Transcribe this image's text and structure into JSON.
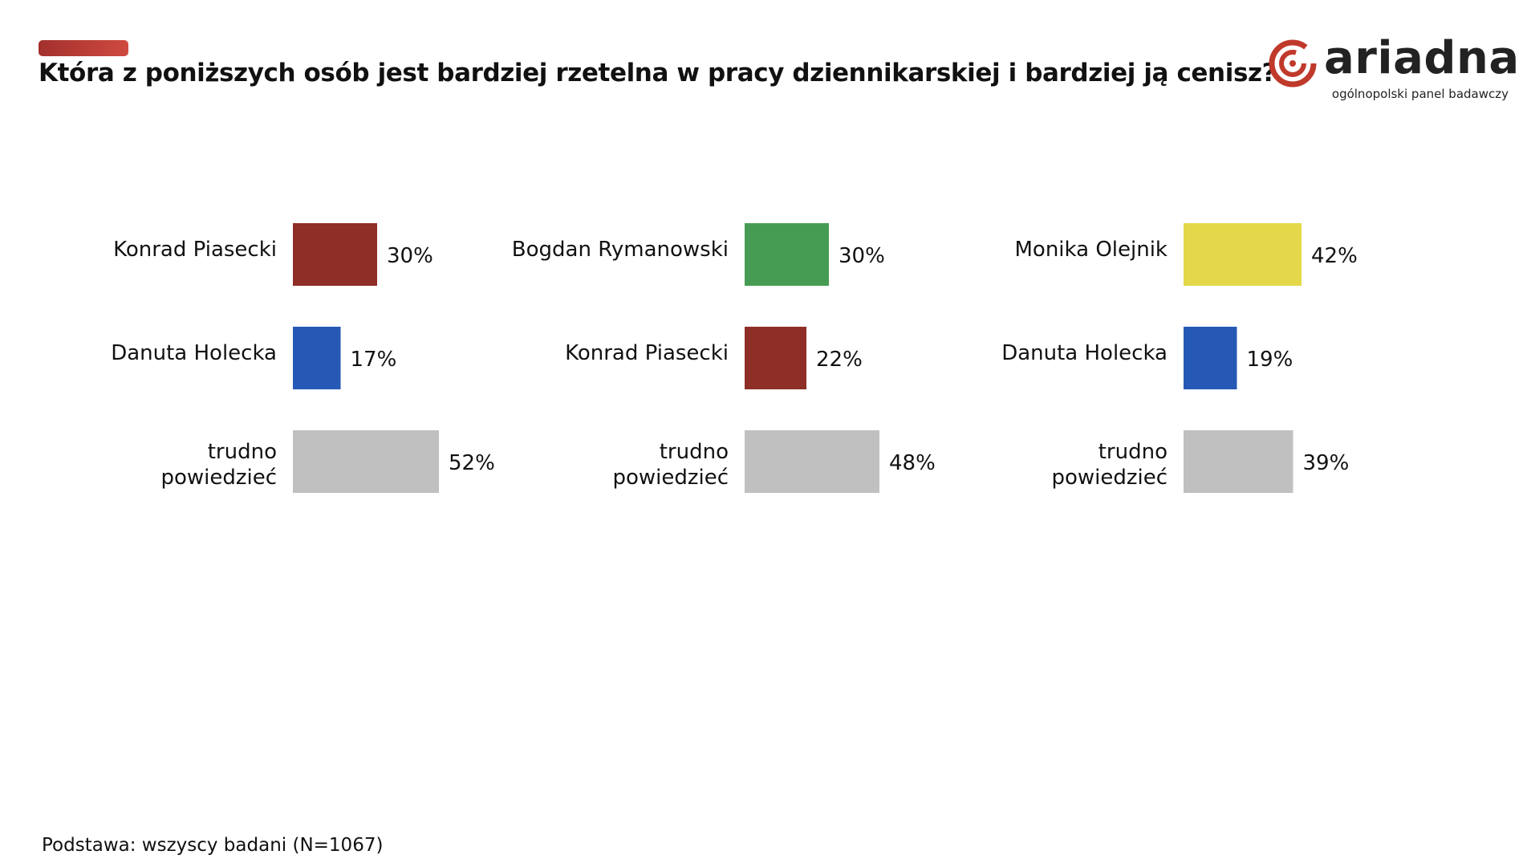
{
  "title": "Która z poniższych osób jest bardziej rzetelna w pracy dziennikarskiej i bardziej ją cenisz?",
  "logo": {
    "wordmark": "ariadna",
    "subtitle": "ogólnopolski panel badawczy",
    "icon": "spiral-logo-icon",
    "color": "#c0392b"
  },
  "footnote": "Podstawa: wszyscy badani (N=1067)",
  "colors": {
    "accent": "#b8322c",
    "piasecki": "#8f2e27",
    "rymanowski": "#479c54",
    "olejnik": "#e4d84a",
    "holecka": "#2559b5",
    "neutral": "#c0c0c0"
  },
  "chart_data": [
    {
      "type": "bar",
      "orientation": "horizontal",
      "xlim": [
        0,
        100
      ],
      "grid": false,
      "legend": "none",
      "categories": [
        "Konrad Piasecki",
        "Danuta Holecka",
        "trudno powiedzieć"
      ],
      "values": [
        30,
        17,
        52
      ],
      "value_labels": [
        "30%",
        "17%",
        "52%"
      ],
      "colors": [
        "#8f2e27",
        "#2559b5",
        "#c0c0c0"
      ]
    },
    {
      "type": "bar",
      "orientation": "horizontal",
      "xlim": [
        0,
        100
      ],
      "grid": false,
      "legend": "none",
      "categories": [
        "Bogdan Rymanowski",
        "Konrad Piasecki",
        "trudno powiedzieć"
      ],
      "values": [
        30,
        22,
        48
      ],
      "value_labels": [
        "30%",
        "22%",
        "48%"
      ],
      "colors": [
        "#479c54",
        "#8f2e27",
        "#c0c0c0"
      ]
    },
    {
      "type": "bar",
      "orientation": "horizontal",
      "xlim": [
        0,
        100
      ],
      "grid": false,
      "legend": "none",
      "categories": [
        "Monika Olejnik",
        "Danuta Holecka",
        "trudno powiedzieć"
      ],
      "values": [
        42,
        19,
        39
      ],
      "value_labels": [
        "42%",
        "19%",
        "39%"
      ],
      "colors": [
        "#e4d84a",
        "#2559b5",
        "#c0c0c0"
      ]
    }
  ]
}
